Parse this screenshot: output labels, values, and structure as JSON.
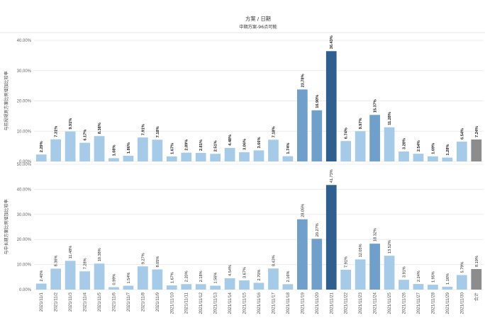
{
  "header": {
    "title": "方案 / 日期",
    "subtitle": "中期方案-96点可能"
  },
  "chart_data": [
    {
      "type": "bar",
      "panel": "top",
      "ylabel": "与前段规则方案比例增加比较率",
      "ylim": [
        0,
        40
      ],
      "yticks": [
        "0.00%",
        "10.00%",
        "20.00%",
        "30.00%",
        "40.00%"
      ],
      "categories": [
        "2021/11/1",
        "2021/11/2",
        "2021/11/3",
        "2021/11/4",
        "2021/11/5",
        "2021/11/6",
        "2021/11/7",
        "2021/11/8",
        "2021/11/9",
        "2021/11/10",
        "2021/11/11",
        "2021/11/12",
        "2021/11/13",
        "2021/11/14",
        "2021/11/15",
        "2021/11/16",
        "2021/11/17",
        "2021/11/18",
        "2021/11/19",
        "2021/11/20",
        "2021/11/21",
        "2021/11/22",
        "2021/11/23",
        "2021/11/24",
        "2021/11/25",
        "2021/11/26",
        "2021/11/27",
        "2021/11/28",
        "2021/11/29",
        "2021/11/30",
        "合计"
      ],
      "values": [
        2.29,
        7.31,
        9.91,
        6.17,
        8.38,
        1.08,
        1.86,
        7.91,
        7.18,
        1.67,
        2.89,
        2.81,
        2.51,
        4.48,
        3.06,
        3.66,
        7.18,
        1.74,
        23.78,
        16.9,
        36.43,
        6.74,
        9.97,
        15.37,
        11.28,
        3.28,
        2.54,
        1.69,
        1.28,
        6.54,
        7.24
      ],
      "labels": [
        "2.29%",
        "7.31%",
        "9.91%",
        "6.17%",
        "8.38%",
        "1.08%",
        "1.86%",
        "7.91%",
        "7.18%",
        "1.67%",
        "2.89%",
        "2.81%",
        "2.51%",
        "4.48%",
        "3.06%",
        "3.66%",
        "7.18%",
        "1.74%",
        "23.78%",
        "16.90%",
        "36.43%",
        "6.74%",
        "9.97%",
        "15.37%",
        "11.28%",
        "3.28%",
        "2.54%",
        "1.69%",
        "1.28%",
        "6.54%",
        "7.24%"
      ]
    },
    {
      "type": "bar",
      "panel": "bottom",
      "ylabel": "与中长期方案比例增加比较率",
      "ylim": [
        0,
        50
      ],
      "yticks": [
        "0.00%",
        "10.00%",
        "20.00%",
        "30.00%",
        "40.00%",
        "50.00%"
      ],
      "categories": [
        "2021/11/1",
        "2021/11/2",
        "2021/11/3",
        "2021/11/4",
        "2021/11/5",
        "2021/11/6",
        "2021/11/7",
        "2021/11/8",
        "2021/11/9",
        "2021/11/10",
        "2021/11/11",
        "2021/11/12",
        "2021/11/13",
        "2021/11/14",
        "2021/11/15",
        "2021/11/16",
        "2021/11/17",
        "2021/11/18",
        "2021/11/19",
        "2021/11/20",
        "2021/11/21",
        "2021/11/22",
        "2021/11/23",
        "2021/11/24",
        "2021/11/25",
        "2021/11/26",
        "2021/11/27",
        "2021/11/28",
        "2021/11/29",
        "2021/11/30",
        "合计"
      ],
      "values": [
        2.4,
        8.36,
        11.48,
        7.28,
        10.38,
        0.99,
        1.54,
        9.27,
        8.05,
        1.67,
        2.2,
        2.18,
        1.56,
        4.54,
        3.67,
        2.7,
        8.43,
        2.16,
        28.05,
        20.27,
        41.73,
        7.91,
        12.05,
        18.32,
        13.52,
        3.91,
        2.24,
        1.95,
        1.16,
        5.79,
        8.19
      ],
      "labels": [
        "2.40%",
        "8.36%",
        "11.48%",
        "7.28%",
        "10.38%",
        "0.99%",
        "1.54%",
        "9.27%",
        "8.05%",
        "1.67%",
        "2.20%",
        "2.18%",
        "1.56%",
        "4.54%",
        "3.67%",
        "2.70%",
        "8.43%",
        "2.16%",
        "28.05%",
        "20.27%",
        "41.73%",
        "7.91%",
        "12.05%",
        "18.32%",
        "13.52%",
        "3.91%",
        "2.24%",
        "1.95%",
        "1.16%",
        "5.79%",
        "8.19%"
      ]
    }
  ],
  "colors": {
    "light": "#a6cbe8",
    "mid": "#6f9fcb",
    "dark": "#2e5f8e",
    "total": "#8c8c8c",
    "grid": "#ececec"
  }
}
